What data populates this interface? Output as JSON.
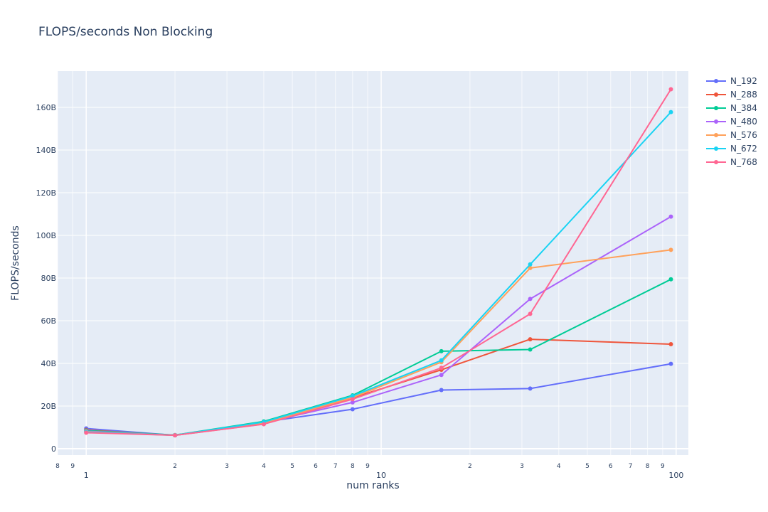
{
  "chart_data": {
    "type": "line",
    "title": "FLOPS/seconds Non Blocking",
    "xlabel": "num ranks",
    "ylabel": "FLOPS/seconds",
    "x_scale": "log",
    "xlim": [
      0.8,
      110
    ],
    "ylim": [
      -3000000000.0,
      177000000000.0
    ],
    "y_ticks": [
      0,
      20000000000,
      40000000000,
      60000000000,
      80000000000,
      100000000000,
      120000000000,
      140000000000,
      160000000000
    ],
    "y_tick_labels": [
      "0",
      "20B",
      "40B",
      "60B",
      "80B",
      "100B",
      "120B",
      "140B",
      "160B"
    ],
    "x_major_ticks": [
      1,
      10,
      100
    ],
    "x_major_labels": [
      "1",
      "10",
      "100"
    ],
    "x_minor_ticks": [
      0.8,
      0.9,
      2,
      3,
      4,
      5,
      6,
      7,
      8,
      9,
      20,
      30,
      40,
      50,
      60,
      70,
      80,
      90
    ],
    "x_minor_labels": [
      "8",
      "9",
      "2",
      "3",
      "4",
      "5",
      "6",
      "7",
      "8",
      "9",
      "2",
      "3",
      "4",
      "5",
      "6",
      "7",
      "8",
      "9"
    ],
    "grid": true,
    "legend_position": "top-right",
    "x": [
      1,
      2,
      4,
      8,
      16,
      32,
      96
    ],
    "series": [
      {
        "name": "N_192",
        "color": "#636efa",
        "values": [
          9500000000,
          6300000000,
          12500000000,
          18500000000,
          27500000000,
          28200000000,
          39800000000
        ]
      },
      {
        "name": "N_288",
        "color": "#EF553B",
        "values": [
          8800000000,
          6300000000,
          11600000000,
          23800000000,
          37000000000,
          51300000000,
          49000000000
        ]
      },
      {
        "name": "N_384",
        "color": "#00cc96",
        "values": [
          8500000000,
          6400000000,
          12800000000,
          25000000000,
          45700000000,
          46500000000,
          79400000000
        ]
      },
      {
        "name": "N_480",
        "color": "#ab63fa",
        "values": [
          8200000000,
          6300000000,
          12200000000,
          21700000000,
          34600000000,
          70200000000,
          108800000000
        ]
      },
      {
        "name": "N_576",
        "color": "#FFA15A",
        "values": [
          8000000000,
          6300000000,
          12000000000,
          24000000000,
          40600000000,
          84700000000,
          93200000000
        ]
      },
      {
        "name": "N_672",
        "color": "#19d3f3",
        "values": [
          7800000000,
          6300000000,
          12500000000,
          24700000000,
          41400000000,
          86400000000,
          157800000000
        ]
      },
      {
        "name": "N_768",
        "color": "#FF6692",
        "values": [
          7500000000,
          6300000000,
          11500000000,
          23200000000,
          37900000000,
          63200000000,
          168500000000
        ]
      }
    ]
  }
}
